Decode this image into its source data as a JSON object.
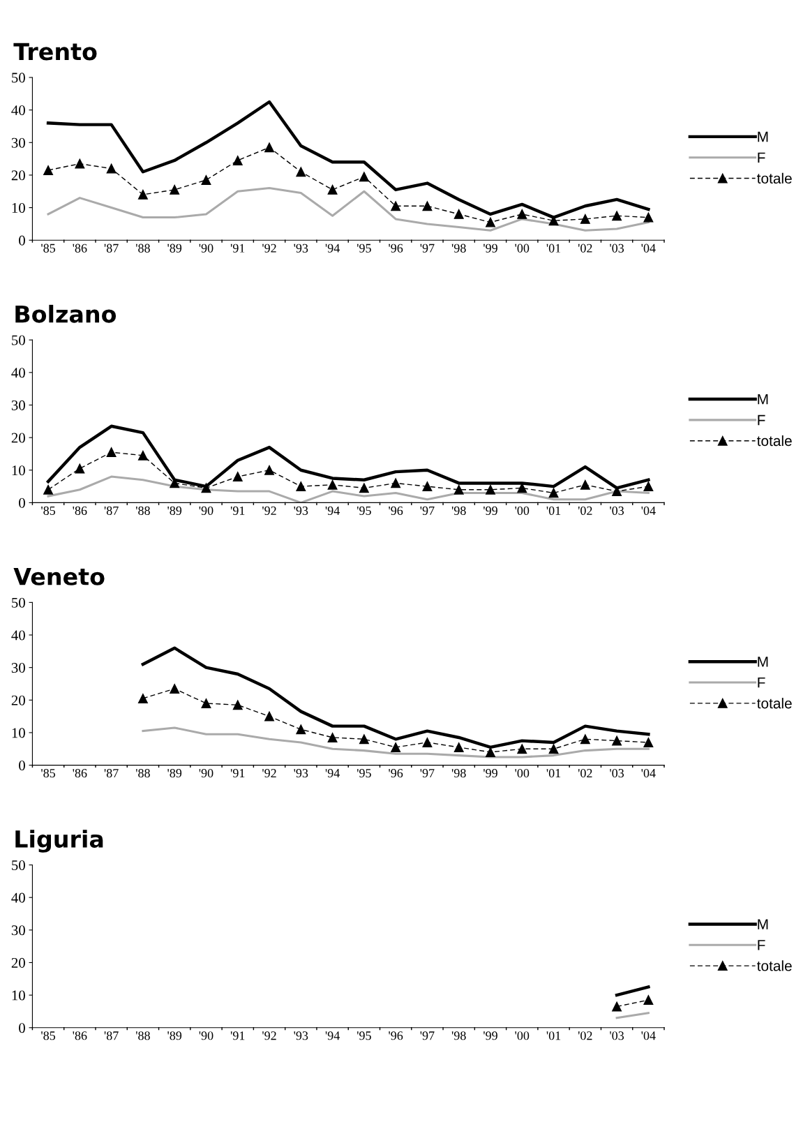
{
  "chart_data": [
    {
      "type": "line",
      "title": "Trento",
      "categories": [
        "'85",
        "'86",
        "'87",
        "'88",
        "'89",
        "'90",
        "'91",
        "'92",
        "'93",
        "'94",
        "'95",
        "'96",
        "'97",
        "'98",
        "'99",
        "'00",
        "'01",
        "'02",
        "'03",
        "'04"
      ],
      "ylim": [
        0,
        50
      ],
      "yticks": [
        0,
        10,
        20,
        30,
        40,
        50
      ],
      "legend": "right",
      "grid": false,
      "series": [
        {
          "name": "M",
          "color": "#000000",
          "line_style": "solid",
          "marker": "none",
          "values": [
            36,
            35.5,
            35.5,
            21,
            24.5,
            30,
            36,
            42.5,
            29,
            24,
            24,
            15.5,
            17.5,
            12.5,
            8,
            11,
            7,
            10.5,
            12.5,
            9.5
          ]
        },
        {
          "name": "F",
          "color": "#aaaaaa",
          "line_style": "solid",
          "marker": "none",
          "values": [
            8,
            13,
            10,
            7,
            7,
            8,
            15,
            16,
            14.5,
            7.5,
            15,
            6.5,
            5,
            4,
            3,
            6.5,
            5,
            3,
            3.5,
            5.5
          ]
        },
        {
          "name": "totale",
          "color": "#000000",
          "line_style": "dashed",
          "marker": "triangle",
          "values": [
            21.5,
            23.5,
            22,
            14,
            15.5,
            18.5,
            24.5,
            28.5,
            21,
            15.5,
            19.5,
            10.5,
            10.5,
            8,
            5.5,
            8,
            6,
            6.5,
            7.5,
            7
          ]
        }
      ]
    },
    {
      "type": "line",
      "title": "Bolzano",
      "categories": [
        "'85",
        "'86",
        "'87",
        "'88",
        "'89",
        "'90",
        "'91",
        "'92",
        "'93",
        "'94",
        "'95",
        "'96",
        "'97",
        "'98",
        "'99",
        "'00",
        "'01",
        "'02",
        "'03",
        "'04"
      ],
      "ylim": [
        0,
        50
      ],
      "yticks": [
        0,
        10,
        20,
        30,
        40,
        50
      ],
      "legend": "right",
      "grid": false,
      "series": [
        {
          "name": "M",
          "color": "#000000",
          "line_style": "solid",
          "marker": "none",
          "values": [
            6.5,
            17,
            23.5,
            21.5,
            7,
            5,
            13,
            17,
            10,
            7.5,
            7,
            9.5,
            10,
            6,
            6,
            6,
            5,
            11,
            4.5,
            7
          ]
        },
        {
          "name": "F",
          "color": "#aaaaaa",
          "line_style": "solid",
          "marker": "none",
          "values": [
            2,
            4,
            8,
            7,
            5,
            4,
            3.5,
            3.5,
            0,
            3.5,
            2,
            3,
            1,
            3,
            3,
            3,
            1,
            1,
            3.5,
            3
          ]
        },
        {
          "name": "totale",
          "color": "#000000",
          "line_style": "dashed",
          "marker": "triangle",
          "values": [
            4,
            10.5,
            15.5,
            14.5,
            6,
            4.5,
            8,
            10,
            5,
            5.5,
            4.5,
            6,
            5,
            4,
            4,
            4.5,
            3,
            5.5,
            3.5,
            5
          ]
        }
      ]
    },
    {
      "type": "line",
      "title": "Veneto",
      "categories": [
        "'85",
        "'86",
        "'87",
        "'88",
        "'89",
        "'90",
        "'91",
        "'92",
        "'93",
        "'94",
        "'95",
        "'96",
        "'97",
        "'98",
        "'99",
        "'00",
        "'01",
        "'02",
        "'03",
        "'04"
      ],
      "ylim": [
        0,
        50
      ],
      "yticks": [
        0,
        10,
        20,
        30,
        40,
        50
      ],
      "legend": "right",
      "grid": false,
      "series": [
        {
          "name": "M",
          "color": "#000000",
          "line_style": "solid",
          "marker": "none",
          "values": [
            null,
            null,
            null,
            31,
            36,
            30,
            28,
            23.5,
            16.5,
            12,
            12,
            8,
            10.5,
            8.5,
            5.5,
            7.5,
            7,
            12,
            10.5,
            9.5
          ]
        },
        {
          "name": "F",
          "color": "#aaaaaa",
          "line_style": "solid",
          "marker": "none",
          "values": [
            null,
            null,
            null,
            10.5,
            11.5,
            9.5,
            9.5,
            8,
            7,
            5,
            4.5,
            3.5,
            3.5,
            3,
            2.5,
            2.5,
            3,
            4.5,
            5,
            5
          ]
        },
        {
          "name": "totale",
          "color": "#000000",
          "line_style": "dashed",
          "marker": "triangle",
          "values": [
            null,
            null,
            null,
            20.5,
            23.5,
            19,
            18.5,
            15,
            11,
            8.5,
            8,
            5.5,
            7,
            5.5,
            4,
            5,
            5,
            8,
            7.5,
            7
          ]
        }
      ]
    },
    {
      "type": "line",
      "title": "Liguria",
      "categories": [
        "'85",
        "'86",
        "'87",
        "'88",
        "'89",
        "'90",
        "'91",
        "'92",
        "'93",
        "'94",
        "'95",
        "'96",
        "'97",
        "'98",
        "'99",
        "'00",
        "'01",
        "'02",
        "'03",
        "'04"
      ],
      "ylim": [
        0,
        50
      ],
      "yticks": [
        0,
        10,
        20,
        30,
        40,
        50
      ],
      "legend": "right",
      "grid": false,
      "series": [
        {
          "name": "M",
          "color": "#000000",
          "line_style": "solid",
          "marker": "none",
          "values": [
            null,
            null,
            null,
            null,
            null,
            null,
            null,
            null,
            null,
            null,
            null,
            null,
            null,
            null,
            null,
            null,
            null,
            null,
            10,
            12.5
          ]
        },
        {
          "name": "F",
          "color": "#aaaaaa",
          "line_style": "solid",
          "marker": "none",
          "values": [
            null,
            null,
            null,
            null,
            null,
            null,
            null,
            null,
            null,
            null,
            null,
            null,
            null,
            null,
            null,
            null,
            null,
            null,
            3,
            4.5
          ]
        },
        {
          "name": "totale",
          "color": "#000000",
          "line_style": "dashed",
          "marker": "triangle",
          "values": [
            null,
            null,
            null,
            null,
            null,
            null,
            null,
            null,
            null,
            null,
            null,
            null,
            null,
            null,
            null,
            null,
            null,
            null,
            6.5,
            8.5
          ]
        }
      ]
    }
  ]
}
